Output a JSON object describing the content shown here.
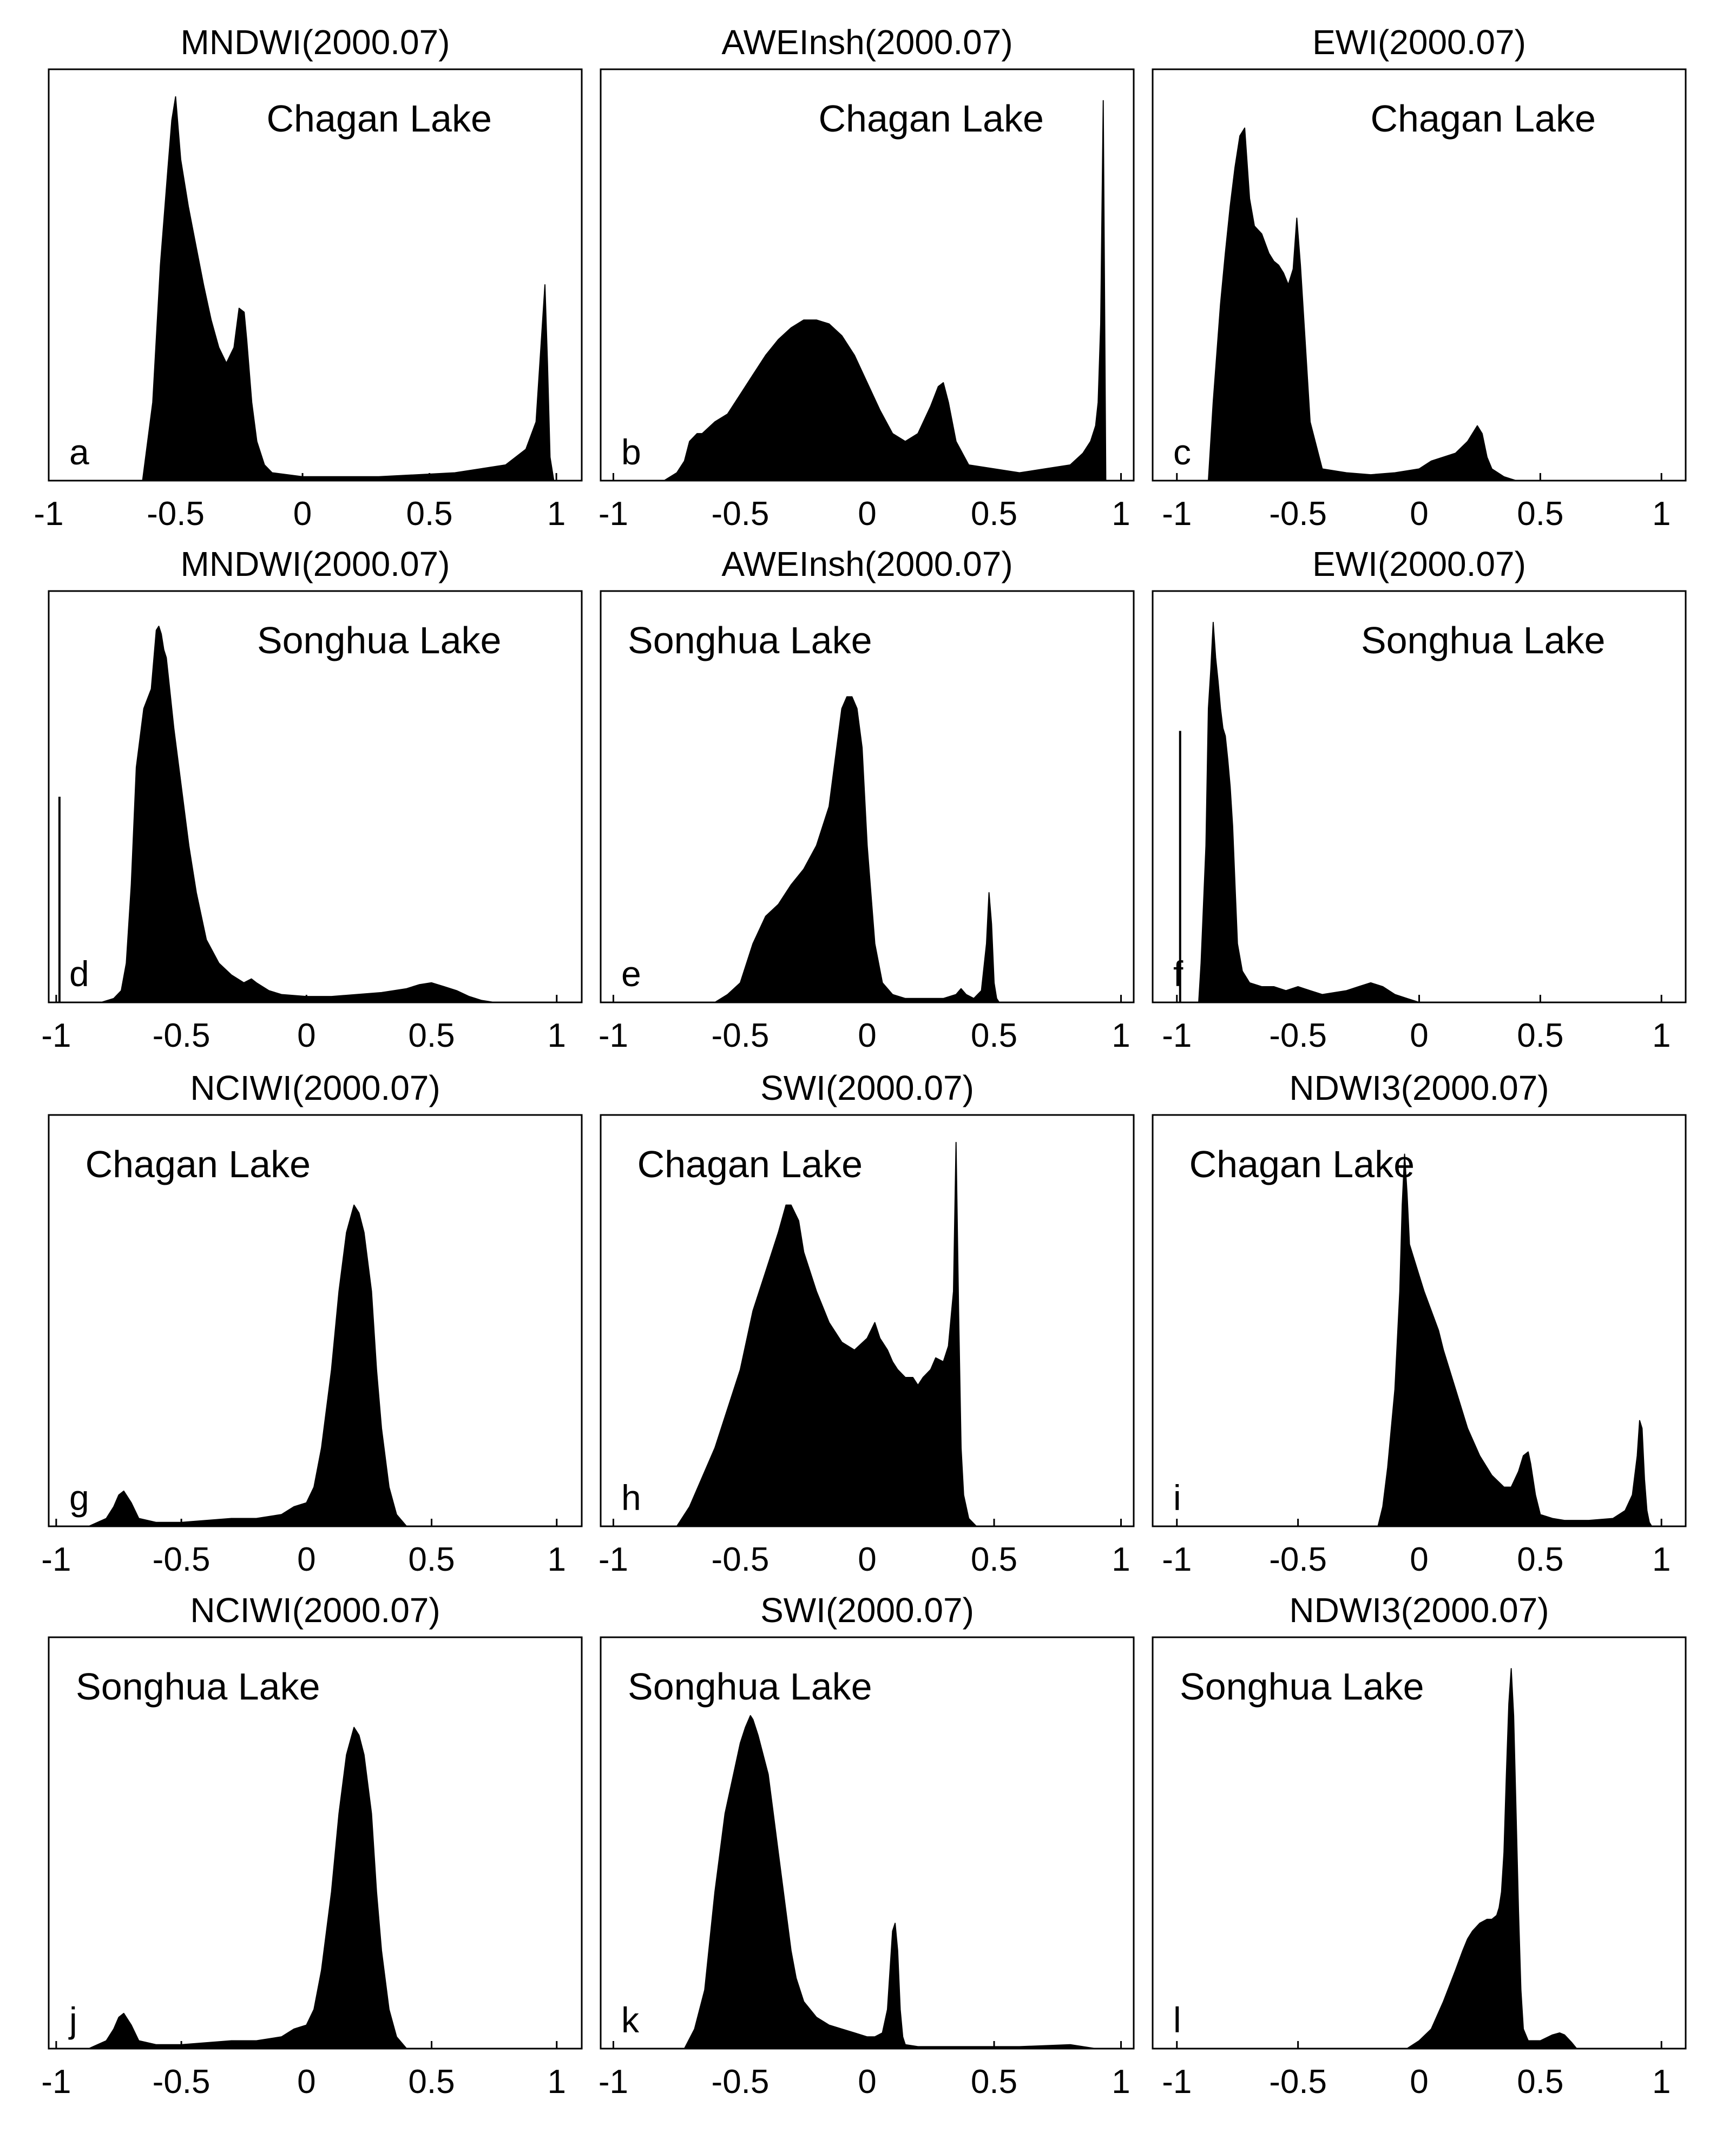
{
  "figure": {
    "description_free": true
  },
  "chart_data": [
    {
      "type": "area",
      "title": "MNDWI(2000.07)",
      "lake": "Chagan Lake",
      "letter": "a",
      "xlim": [
        -1,
        1.1
      ],
      "ylim": [
        0,
        1.05
      ],
      "xticks": [
        -1,
        -0.5,
        0,
        0.5,
        1
      ],
      "tick_labels": [
        "-1",
        "-0.5",
        "0",
        "0.5",
        "1"
      ],
      "label_pos": "top-right",
      "letter_pos": "bottom-left",
      "x": [
        -0.63,
        -0.59,
        -0.56,
        -0.53,
        -0.515,
        -0.5,
        -0.48,
        -0.45,
        -0.42,
        -0.39,
        -0.36,
        -0.33,
        -0.3,
        -0.27,
        -0.25,
        -0.23,
        -0.22,
        -0.2,
        -0.18,
        -0.15,
        -0.12,
        0,
        0.3,
        0.6,
        0.8,
        0.88,
        0.92,
        0.94,
        0.955,
        0.965,
        0.975,
        0.99
      ],
      "y": [
        0,
        0.2,
        0.55,
        0.8,
        0.92,
        0.98,
        0.82,
        0.7,
        0.6,
        0.5,
        0.41,
        0.34,
        0.3,
        0.34,
        0.44,
        0.43,
        0.36,
        0.2,
        0.1,
        0.04,
        0.02,
        0.01,
        0.01,
        0.02,
        0.04,
        0.08,
        0.15,
        0.35,
        0.5,
        0.3,
        0.06,
        0
      ]
    },
    {
      "type": "area",
      "title": "AWEInsh(2000.07)",
      "lake": "Chagan Lake",
      "letter": "b",
      "xlim": [
        -1.05,
        1.05
      ],
      "ylim": [
        0,
        1.05
      ],
      "xticks": [
        -1,
        -0.5,
        0,
        0.5,
        1
      ],
      "tick_labels": [
        "-1",
        "-0.5",
        "0",
        "0.5",
        "1"
      ],
      "label_pos": "top-right",
      "letter_pos": "bottom-left",
      "x": [
        -0.8,
        -0.75,
        -0.72,
        -0.7,
        -0.67,
        -0.65,
        -0.6,
        -0.55,
        -0.5,
        -0.45,
        -0.4,
        -0.35,
        -0.3,
        -0.25,
        -0.2,
        -0.15,
        -0.1,
        -0.05,
        0,
        0.05,
        0.1,
        0.15,
        0.2,
        0.25,
        0.28,
        0.3,
        0.32,
        0.35,
        0.4,
        0.5,
        0.6,
        0.7,
        0.8,
        0.85,
        0.88,
        0.9,
        0.91,
        0.92,
        0.93,
        0.94
      ],
      "y": [
        0,
        0.02,
        0.05,
        0.1,
        0.12,
        0.12,
        0.15,
        0.17,
        0.22,
        0.27,
        0.32,
        0.36,
        0.39,
        0.41,
        0.41,
        0.4,
        0.37,
        0.32,
        0.25,
        0.18,
        0.12,
        0.1,
        0.12,
        0.19,
        0.24,
        0.25,
        0.2,
        0.1,
        0.04,
        0.03,
        0.02,
        0.03,
        0.04,
        0.07,
        0.1,
        0.14,
        0.2,
        0.4,
        0.97,
        0
      ]
    },
    {
      "type": "area",
      "title": "EWI(2000.07)",
      "lake": "Chagan Lake",
      "letter": "c",
      "xlim": [
        -1.1,
        1.1
      ],
      "ylim": [
        0,
        1.05
      ],
      "xticks": [
        -1,
        -0.5,
        0,
        0.5,
        1
      ],
      "tick_labels": [
        "-1",
        "-0.5",
        "0",
        "0.5",
        "1"
      ],
      "label_pos": "top-right",
      "letter_pos": "bottom-left",
      "x": [
        -0.87,
        -0.85,
        -0.82,
        -0.8,
        -0.78,
        -0.76,
        -0.74,
        -0.72,
        -0.7,
        -0.68,
        -0.65,
        -0.62,
        -0.6,
        -0.58,
        -0.56,
        -0.54,
        -0.52,
        -0.505,
        -0.49,
        -0.47,
        -0.45,
        -0.4,
        -0.3,
        -0.2,
        -0.1,
        0,
        0.05,
        0.1,
        0.15,
        0.2,
        0.24,
        0.26,
        0.28,
        0.3,
        0.35,
        0.4
      ],
      "y": [
        0,
        0.2,
        0.45,
        0.58,
        0.7,
        0.8,
        0.88,
        0.9,
        0.72,
        0.65,
        0.63,
        0.58,
        0.56,
        0.55,
        0.53,
        0.5,
        0.54,
        0.67,
        0.55,
        0.35,
        0.15,
        0.03,
        0.02,
        0.015,
        0.02,
        0.03,
        0.05,
        0.06,
        0.07,
        0.1,
        0.14,
        0.12,
        0.06,
        0.03,
        0.01,
        0
      ]
    },
    {
      "type": "area",
      "title": "MNDWI(2000.07)",
      "lake": "Songhua Lake",
      "letter": "d",
      "xlim": [
        -1.03,
        1.1
      ],
      "ylim": [
        0,
        1.05
      ],
      "xticks": [
        -1,
        -0.5,
        0,
        0.5,
        1
      ],
      "tick_labels": [
        "-1",
        "-0.5",
        "0",
        "0.5",
        "1"
      ],
      "label_pos": "top-right",
      "letter_pos": "bottom-left",
      "x": [
        -0.82,
        -0.77,
        -0.74,
        -0.72,
        -0.7,
        -0.68,
        -0.65,
        -0.62,
        -0.6,
        -0.59,
        -0.58,
        -0.57,
        -0.56,
        -0.55,
        -0.53,
        -0.5,
        -0.47,
        -0.44,
        -0.4,
        -0.35,
        -0.3,
        -0.25,
        -0.22,
        -0.2,
        -0.15,
        -0.1,
        0,
        0.1,
        0.2,
        0.3,
        0.4,
        0.45,
        0.5,
        0.55,
        0.6,
        0.65,
        0.7,
        0.75
      ],
      "y": [
        0,
        0.01,
        0.03,
        0.1,
        0.3,
        0.6,
        0.75,
        0.8,
        0.95,
        0.96,
        0.94,
        0.9,
        0.88,
        0.82,
        0.7,
        0.55,
        0.4,
        0.28,
        0.16,
        0.1,
        0.07,
        0.05,
        0.06,
        0.05,
        0.03,
        0.02,
        0.015,
        0.015,
        0.02,
        0.025,
        0.035,
        0.045,
        0.05,
        0.04,
        0.03,
        0.015,
        0.005,
        0
      ]
    },
    {
      "type": "area",
      "title": "AWEInsh(2000.07)",
      "lake": "Songhua Lake",
      "letter": "e",
      "xlim": [
        -1.05,
        1.05
      ],
      "ylim": [
        0,
        1.05
      ],
      "xticks": [
        -1,
        -0.5,
        0,
        0.5,
        1
      ],
      "tick_labels": [
        "-1",
        "-0.5",
        "0",
        "0.5",
        "1"
      ],
      "label_pos": "top-left",
      "letter_pos": "bottom-left",
      "x": [
        -0.6,
        -0.55,
        -0.5,
        -0.45,
        -0.4,
        -0.35,
        -0.3,
        -0.25,
        -0.2,
        -0.15,
        -0.12,
        -0.1,
        -0.08,
        -0.06,
        -0.04,
        -0.02,
        0,
        0.03,
        0.06,
        0.1,
        0.15,
        0.2,
        0.3,
        0.35,
        0.37,
        0.39,
        0.42,
        0.45,
        0.47,
        0.48,
        0.49,
        0.5,
        0.51,
        0.52
      ],
      "y": [
        0,
        0.02,
        0.05,
        0.15,
        0.22,
        0.25,
        0.3,
        0.34,
        0.4,
        0.5,
        0.65,
        0.75,
        0.78,
        0.78,
        0.75,
        0.65,
        0.4,
        0.15,
        0.05,
        0.02,
        0.01,
        0.01,
        0.01,
        0.02,
        0.035,
        0.02,
        0.01,
        0.03,
        0.15,
        0.28,
        0.2,
        0.05,
        0.01,
        0
      ]
    },
    {
      "type": "area",
      "title": "EWI(2000.07)",
      "lake": "Songhua Lake",
      "letter": "f",
      "xlim": [
        -1.1,
        1.1
      ],
      "ylim": [
        0,
        1.05
      ],
      "xticks": [
        -1,
        -0.5,
        0,
        0.5,
        1
      ],
      "tick_labels": [
        "-1",
        "-0.5",
        "0",
        "0.5",
        "1"
      ],
      "label_pos": "top-right",
      "letter_pos": "bottom-left",
      "x": [
        -0.91,
        -0.9,
        -0.88,
        -0.87,
        -0.86,
        -0.85,
        -0.84,
        -0.83,
        -0.82,
        -0.81,
        -0.8,
        -0.79,
        -0.78,
        -0.77,
        -0.76,
        -0.75,
        -0.73,
        -0.7,
        -0.65,
        -0.6,
        -0.55,
        -0.5,
        -0.45,
        -0.4,
        -0.3,
        -0.25,
        -0.2,
        -0.15,
        -0.1,
        -0.05,
        0
      ],
      "y": [
        0,
        0.1,
        0.4,
        0.75,
        0.85,
        0.97,
        0.88,
        0.82,
        0.75,
        0.7,
        0.68,
        0.62,
        0.55,
        0.45,
        0.3,
        0.15,
        0.08,
        0.05,
        0.04,
        0.04,
        0.03,
        0.04,
        0.03,
        0.02,
        0.03,
        0.04,
        0.05,
        0.04,
        0.02,
        0.01,
        0
      ]
    },
    {
      "type": "area",
      "title": "NCIWI(2000.07)",
      "lake": "Chagan Lake",
      "letter": "g",
      "xlim": [
        -1.03,
        1.1
      ],
      "ylim": [
        0,
        1.05
      ],
      "xticks": [
        -1,
        -0.5,
        0,
        0.5,
        1
      ],
      "tick_labels": [
        "-1",
        "-0.5",
        "0",
        "0.5",
        "1"
      ],
      "label_pos": "top-left",
      "letter_pos": "bottom-left",
      "x": [
        -0.87,
        -0.8,
        -0.77,
        -0.75,
        -0.73,
        -0.7,
        -0.67,
        -0.6,
        -0.5,
        -0.4,
        -0.3,
        -0.2,
        -0.1,
        -0.05,
        0,
        0.03,
        0.06,
        0.1,
        0.13,
        0.16,
        0.19,
        0.21,
        0.23,
        0.26,
        0.28,
        0.3,
        0.33,
        0.36,
        0.4
      ],
      "y": [
        0,
        0.02,
        0.05,
        0.08,
        0.09,
        0.06,
        0.02,
        0.01,
        0.01,
        0.015,
        0.02,
        0.02,
        0.03,
        0.05,
        0.06,
        0.1,
        0.2,
        0.4,
        0.6,
        0.75,
        0.82,
        0.8,
        0.75,
        0.6,
        0.4,
        0.25,
        0.1,
        0.03,
        0
      ]
    },
    {
      "type": "area",
      "title": "SWI(2000.07)",
      "lake": "Chagan Lake",
      "letter": "h",
      "xlim": [
        -1.05,
        1.05
      ],
      "ylim": [
        0,
        1.05
      ],
      "xticks": [
        -1,
        -0.5,
        0,
        0.5,
        1
      ],
      "tick_labels": [
        "-1",
        "-0.5",
        "0",
        "0.5",
        "1"
      ],
      "label_pos": "top-left",
      "letter_pos": "bottom-left",
      "x": [
        -0.75,
        -0.7,
        -0.6,
        -0.5,
        -0.45,
        -0.4,
        -0.35,
        -0.32,
        -0.3,
        -0.27,
        -0.25,
        -0.2,
        -0.15,
        -0.1,
        -0.05,
        0,
        0.03,
        0.05,
        0.08,
        0.1,
        0.12,
        0.15,
        0.18,
        0.2,
        0.22,
        0.25,
        0.27,
        0.3,
        0.32,
        0.34,
        0.35,
        0.36,
        0.37,
        0.38,
        0.4,
        0.43
      ],
      "y": [
        0,
        0.05,
        0.2,
        0.4,
        0.55,
        0.65,
        0.75,
        0.82,
        0.82,
        0.78,
        0.7,
        0.6,
        0.52,
        0.47,
        0.45,
        0.48,
        0.52,
        0.48,
        0.45,
        0.42,
        0.4,
        0.38,
        0.38,
        0.36,
        0.38,
        0.4,
        0.43,
        0.42,
        0.46,
        0.6,
        0.98,
        0.55,
        0.2,
        0.08,
        0.02,
        0
      ]
    },
    {
      "type": "area",
      "title": "NDWI3(2000.07)",
      "lake": "Chagan Lake",
      "letter": "i",
      "xlim": [
        -1.1,
        1.1
      ],
      "ylim": [
        0,
        1.05
      ],
      "xticks": [
        -1,
        -0.5,
        0,
        0.5,
        1
      ],
      "tick_labels": [
        "-1",
        "-0.5",
        "0",
        "0.5",
        "1"
      ],
      "label_pos": "top-left",
      "letter_pos": "bottom-left",
      "x": [
        -0.17,
        -0.15,
        -0.13,
        -0.1,
        -0.08,
        -0.07,
        -0.06,
        -0.05,
        -0.04,
        -0.02,
        0,
        0.02,
        0.05,
        0.08,
        0.1,
        0.15,
        0.2,
        0.25,
        0.3,
        0.35,
        0.38,
        0.41,
        0.43,
        0.45,
        0.46,
        0.48,
        0.5,
        0.55,
        0.6,
        0.7,
        0.8,
        0.85,
        0.88,
        0.9,
        0.91,
        0.92,
        0.93,
        0.94,
        0.95,
        0.96
      ],
      "y": [
        0,
        0.05,
        0.15,
        0.35,
        0.6,
        0.82,
        0.95,
        0.85,
        0.72,
        0.68,
        0.64,
        0.6,
        0.55,
        0.5,
        0.45,
        0.35,
        0.25,
        0.18,
        0.13,
        0.1,
        0.1,
        0.14,
        0.18,
        0.19,
        0.16,
        0.08,
        0.03,
        0.02,
        0.015,
        0.015,
        0.02,
        0.04,
        0.08,
        0.18,
        0.27,
        0.25,
        0.12,
        0.04,
        0.01,
        0
      ]
    },
    {
      "type": "area",
      "title": "NCIWI(2000.07)",
      "lake": "Songhua Lake",
      "letter": "j",
      "xlim": [
        -1.03,
        1.1
      ],
      "ylim": [
        0,
        1.05
      ],
      "xticks": [
        -1,
        -0.5,
        0,
        0.5,
        1
      ],
      "tick_labels": [
        "-1",
        "-0.5",
        "0",
        "0.5",
        "1"
      ],
      "label_pos": "top-left",
      "letter_pos": "bottom-left",
      "x": [
        -0.87,
        -0.8,
        -0.77,
        -0.75,
        -0.73,
        -0.7,
        -0.67,
        -0.6,
        -0.5,
        -0.4,
        -0.3,
        -0.2,
        -0.1,
        -0.05,
        0,
        0.03,
        0.06,
        0.1,
        0.13,
        0.16,
        0.19,
        0.21,
        0.23,
        0.26,
        0.28,
        0.3,
        0.33,
        0.36,
        0.4
      ],
      "y": [
        0,
        0.02,
        0.05,
        0.08,
        0.09,
        0.06,
        0.02,
        0.01,
        0.01,
        0.015,
        0.02,
        0.02,
        0.03,
        0.05,
        0.06,
        0.1,
        0.2,
        0.4,
        0.6,
        0.75,
        0.82,
        0.8,
        0.75,
        0.6,
        0.4,
        0.25,
        0.1,
        0.03,
        0
      ]
    },
    {
      "type": "area",
      "title": "SWI(2000.07)",
      "lake": "Songhua Lake",
      "letter": "k",
      "xlim": [
        -1.05,
        1.05
      ],
      "ylim": [
        0,
        1.05
      ],
      "xticks": [
        -1,
        -0.5,
        0,
        0.5,
        1
      ],
      "tick_labels": [
        "-1",
        "-0.5",
        "0",
        "0.5",
        "1"
      ],
      "label_pos": "top-left",
      "letter_pos": "bottom-left",
      "x": [
        -0.72,
        -0.68,
        -0.64,
        -0.6,
        -0.56,
        -0.52,
        -0.5,
        -0.48,
        -0.46,
        -0.45,
        -0.43,
        -0.41,
        -0.39,
        -0.37,
        -0.35,
        -0.32,
        -0.3,
        -0.28,
        -0.25,
        -0.2,
        -0.15,
        -0.1,
        -0.05,
        0,
        0.03,
        0.06,
        0.08,
        0.09,
        0.1,
        0.11,
        0.12,
        0.13,
        0.14,
        0.15,
        0.2,
        0.4,
        0.6,
        0.8,
        0.9
      ],
      "y": [
        0,
        0.05,
        0.15,
        0.4,
        0.6,
        0.72,
        0.78,
        0.82,
        0.85,
        0.84,
        0.8,
        0.75,
        0.7,
        0.6,
        0.5,
        0.35,
        0.25,
        0.18,
        0.12,
        0.08,
        0.06,
        0.05,
        0.04,
        0.03,
        0.03,
        0.04,
        0.1,
        0.2,
        0.3,
        0.32,
        0.25,
        0.1,
        0.03,
        0.01,
        0.005,
        0.005,
        0.005,
        0.01,
        0
      ]
    },
    {
      "type": "area",
      "title": "NDWI3(2000.07)",
      "lake": "Songhua Lake",
      "letter": "l",
      "xlim": [
        -1.1,
        1.1
      ],
      "ylim": [
        0,
        1.05
      ],
      "xticks": [
        -1,
        -0.5,
        0,
        0.5,
        1
      ],
      "tick_labels": [
        "-1",
        "-0.5",
        "0",
        "0.5",
        "1"
      ],
      "label_pos": "top-left",
      "letter_pos": "bottom-left",
      "x": [
        -0.05,
        0,
        0.05,
        0.1,
        0.15,
        0.18,
        0.2,
        0.22,
        0.25,
        0.28,
        0.3,
        0.32,
        0.33,
        0.34,
        0.35,
        0.36,
        0.37,
        0.38,
        0.39,
        0.4,
        0.41,
        0.42,
        0.43,
        0.45,
        0.5,
        0.55,
        0.58,
        0.6,
        0.63,
        0.65
      ],
      "y": [
        0,
        0.02,
        0.05,
        0.12,
        0.2,
        0.25,
        0.28,
        0.3,
        0.32,
        0.33,
        0.33,
        0.34,
        0.36,
        0.4,
        0.5,
        0.7,
        0.88,
        0.97,
        0.85,
        0.6,
        0.35,
        0.15,
        0.05,
        0.02,
        0.02,
        0.035,
        0.04,
        0.035,
        0.015,
        0
      ]
    }
  ]
}
